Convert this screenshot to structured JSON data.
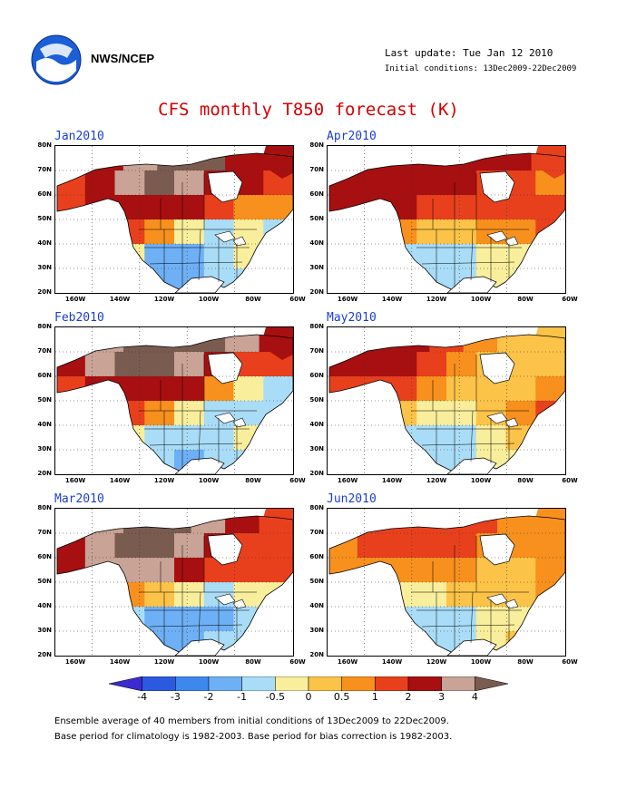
{
  "header": {
    "org": "NWS/NCEP",
    "last_update": "Last update: Tue Jan 12 2010",
    "initial_conditions": "Initial conditions: 13Dec2009-22Dec2009"
  },
  "title": "CFS monthly T850 forecast (K)",
  "lat_labels": [
    "80N",
    "70N",
    "60N",
    "50N",
    "40N",
    "30N",
    "20N"
  ],
  "lon_labels": [
    "160W",
    "140W",
    "120W",
    "100W",
    "80W",
    "60W"
  ],
  "colorbar": {
    "labels": [
      "-4",
      "-3",
      "-2",
      "-1",
      "-0.5",
      "0",
      "0.5",
      "1",
      "2",
      "3",
      "4"
    ],
    "colors": [
      "#3a2bd0",
      "#2b5ae0",
      "#3d88ee",
      "#6eb0f5",
      "#a9dcf7",
      "#f9ee9b",
      "#fbc348",
      "#f7901d",
      "#e8401c",
      "#a80f10",
      "#c9a395",
      "#7a5b50"
    ]
  },
  "panels": [
    {
      "label": "Jan2010",
      "pattern": "jan"
    },
    {
      "label": "Apr2010",
      "pattern": "apr"
    },
    {
      "label": "Feb2010",
      "pattern": "feb"
    },
    {
      "label": "May2010",
      "pattern": "may"
    },
    {
      "label": "Mar2010",
      "pattern": "mar"
    },
    {
      "label": "Jun2010",
      "pattern": "jun"
    }
  ],
  "footer": {
    "line1": "Ensemble average of 40 members from initial conditions of 13Dec2009 to 22Dec2009.",
    "line2": "Base period for climatology is 1982-2003. Base period for bias correction is 1982-2003."
  }
}
